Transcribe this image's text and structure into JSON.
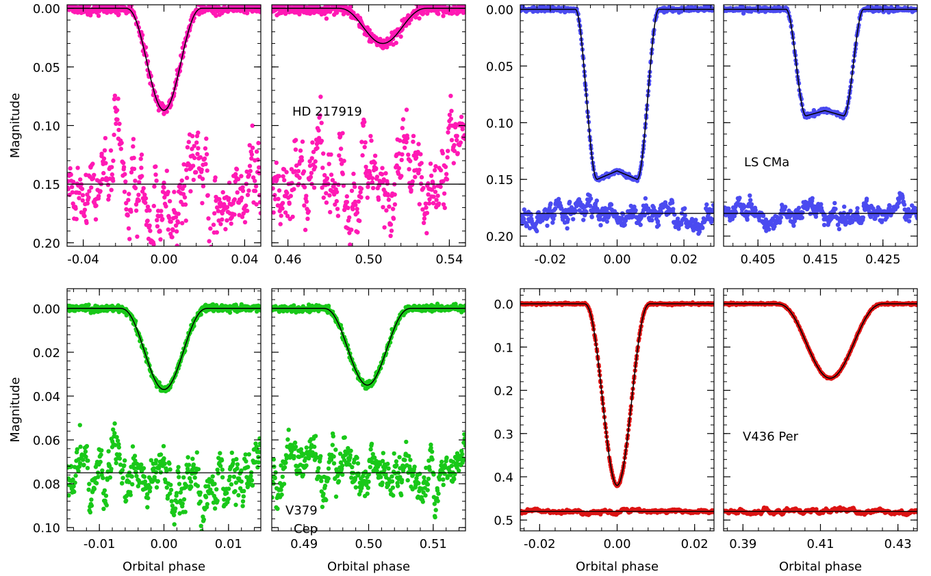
{
  "chart_data": [
    {
      "type": "scatter",
      "object": "HD 217919",
      "ylabel": "Magnitude",
      "xlabel": "",
      "color": "#ff19b4",
      "y_reversed": true,
      "ylim": [
        -0.003,
        0.203
      ],
      "yticks": [
        0.0,
        0.05,
        0.1,
        0.15,
        0.2
      ],
      "ytick_labels": [
        "0.00",
        "0.05",
        "0.10",
        "0.15",
        "0.20"
      ],
      "residual_offset": 0.15,
      "residual_scatter": 0.022,
      "data_scatter": 0.0025,
      "panels": [
        {
          "xlim": [
            -0.048,
            0.048
          ],
          "xticks": [
            -0.04,
            0.0,
            0.04
          ],
          "xtick_labels": [
            "-0.04",
            "0.00",
            "0.04"
          ],
          "eclipse_center": 0.0,
          "contact_half_width": 0.019,
          "depth": 0.087,
          "shape": "v"
        },
        {
          "xlim": [
            0.452,
            0.548
          ],
          "xticks": [
            0.46,
            0.5,
            0.54
          ],
          "xtick_labels": [
            "0.46",
            "0.50",
            "0.54"
          ],
          "eclipse_center": 0.507,
          "contact_half_width": 0.022,
          "depth": 0.03,
          "shape": "v"
        }
      ]
    },
    {
      "type": "scatter",
      "object": "LS CMa",
      "ylabel": "",
      "xlabel": "",
      "color": "#4b4bf0",
      "y_reversed": true,
      "ylim": [
        -0.004,
        0.209
      ],
      "yticks": [
        0.0,
        0.05,
        0.1,
        0.15,
        0.2
      ],
      "ytick_labels": [
        "0.00",
        "0.05",
        "0.10",
        "0.15",
        "0.20"
      ],
      "residual_offset": 0.18,
      "residual_scatter": 0.006,
      "data_scatter": 0.001,
      "panels": [
        {
          "xlim": [
            -0.029,
            0.029
          ],
          "xticks": [
            -0.02,
            0.0,
            0.02
          ],
          "xtick_labels": [
            "-0.02",
            "0.00",
            "0.02"
          ],
          "eclipse_center": 0.0,
          "contact_half_width": 0.0125,
          "depth": 0.15,
          "shape": "flat",
          "flat_half_width": 0.006
        },
        {
          "xlim": [
            0.3995,
            0.4305
          ],
          "xticks": [
            0.405,
            0.415,
            0.425
          ],
          "xtick_labels": [
            "0.405",
            "0.415",
            "0.425"
          ],
          "eclipse_center": 0.4157,
          "contact_half_width": 0.0062,
          "depth": 0.094,
          "shape": "flat",
          "flat_half_width": 0.003
        }
      ]
    },
    {
      "type": "scatter",
      "object": "V379 Cep",
      "ylabel": "Magnitude",
      "xlabel": "Orbital phase",
      "color": "#19c819",
      "y_reversed": true,
      "ylim": [
        -0.009,
        0.1015
      ],
      "yticks": [
        0.0,
        0.02,
        0.04,
        0.06,
        0.08,
        0.1
      ],
      "ytick_labels": [
        "0.00",
        "0.02",
        "0.04",
        "0.06",
        "0.08",
        "0.10"
      ],
      "residual_offset": 0.075,
      "residual_scatter": 0.008,
      "data_scatter": 0.0008,
      "panels": [
        {
          "xlim": [
            -0.015,
            0.015
          ],
          "xticks": [
            -0.01,
            0.0,
            0.01
          ],
          "xtick_labels": [
            "-0.01",
            "0.00",
            "0.01"
          ],
          "eclipse_center": 0.0,
          "contact_half_width": 0.0068,
          "depth": 0.037,
          "shape": "v"
        },
        {
          "xlim": [
            0.485,
            0.515
          ],
          "xticks": [
            0.49,
            0.5,
            0.51
          ],
          "xtick_labels": [
            "0.49",
            "0.50",
            "0.51"
          ],
          "eclipse_center": 0.4998,
          "contact_half_width": 0.0068,
          "depth": 0.035,
          "shape": "v"
        }
      ]
    },
    {
      "type": "scatter",
      "object": "V436 Per",
      "ylabel": "",
      "xlabel": "Orbital phase",
      "color": "#dc1414",
      "y_reversed": true,
      "ylim": [
        -0.035,
        0.525
      ],
      "yticks": [
        0.0,
        0.1,
        0.2,
        0.3,
        0.4,
        0.5
      ],
      "ytick_labels": [
        "0.0",
        "0.1",
        "0.2",
        "0.3",
        "0.4",
        "0.5"
      ],
      "residual_offset": 0.48,
      "residual_scatter": 0.003,
      "data_scatter": 0.001,
      "panels": [
        {
          "xlim": [
            -0.025,
            0.025
          ],
          "xticks": [
            -0.02,
            0.0,
            0.02
          ],
          "xtick_labels": [
            "-0.02",
            "0.00",
            "0.02"
          ],
          "eclipse_center": 0.0,
          "contact_half_width": 0.0085,
          "depth": 0.42,
          "shape": "v"
        },
        {
          "xlim": [
            0.385,
            0.435
          ],
          "xticks": [
            0.39,
            0.41,
            0.43
          ],
          "xtick_labels": [
            "0.39",
            "0.41",
            "0.43"
          ],
          "eclipse_center": 0.4125,
          "contact_half_width": 0.0138,
          "depth": 0.172,
          "shape": "v"
        }
      ]
    }
  ]
}
